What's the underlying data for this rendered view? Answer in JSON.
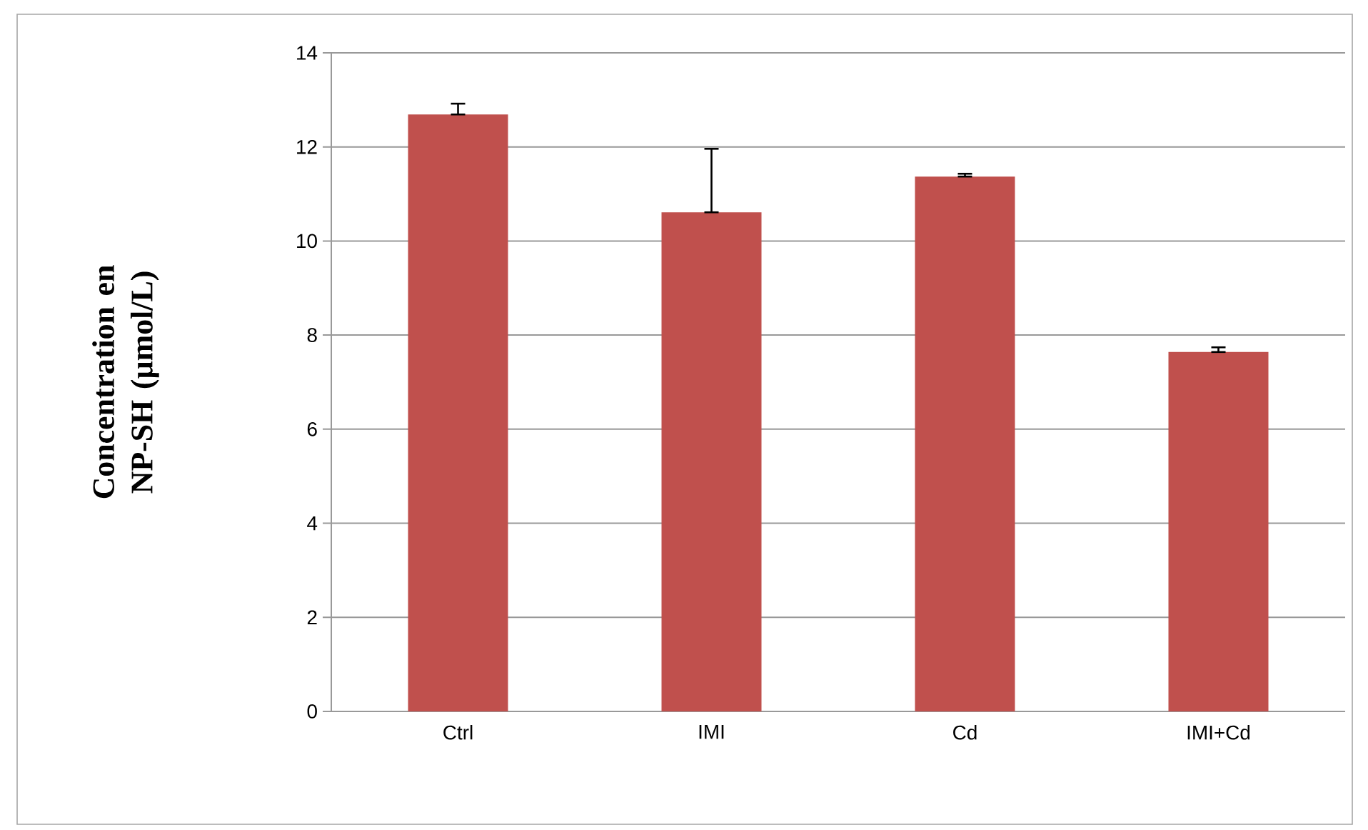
{
  "chart_data": {
    "type": "bar",
    "ylabel": "Concentration en NP-SH (µmol/L)",
    "categories": [
      "Ctrl",
      "IMI",
      "Cd",
      "IMI+Cd"
    ],
    "values": [
      12.69,
      10.61,
      11.37,
      7.64
    ],
    "errors": [
      [
        12.69,
        12.92
      ],
      [
        10.61,
        11.96
      ],
      [
        11.37,
        11.43
      ],
      [
        7.64,
        7.74
      ]
    ],
    "color": "#c0504d",
    "ylim": [
      0,
      14
    ],
    "yticks": [
      0,
      2,
      4,
      6,
      8,
      10,
      12,
      14
    ],
    "grid": "y"
  }
}
